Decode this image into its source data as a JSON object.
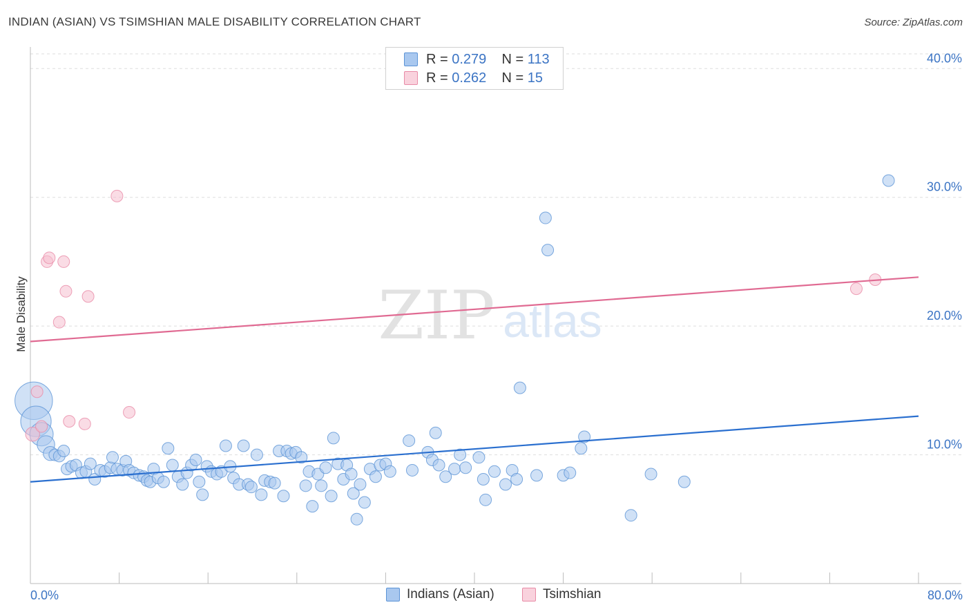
{
  "title": "INDIAN (ASIAN) VS TSIMSHIAN MALE DISABILITY CORRELATION CHART",
  "source": "Source: ZipAtlas.com",
  "watermark": {
    "zip": "ZIP",
    "atlas": "atlas"
  },
  "legend_top": {
    "row1": {
      "r_label": "R = ",
      "r_value": "0.279",
      "n_label": "N = ",
      "n_value": "113"
    },
    "row2": {
      "r_label": "R = ",
      "r_value": "0.262",
      "n_label": "N = ",
      "n_value": "15"
    }
  },
  "legend_bottom": {
    "series1": "Indians (Asian)",
    "series2": "Tsimshian"
  },
  "x_tick_left": "0.0%",
  "x_tick_right": "80.0%",
  "colors": {
    "blue_fill": "#a9c8ef",
    "blue_stroke": "#5b93d6",
    "blue_line": "#2a6fcf",
    "pink_fill": "#f5c0cf",
    "pink_stroke": "#e88aa6",
    "pink_line": "#e06a92",
    "tick_text": "#3b74c4",
    "grid": "#dedede"
  },
  "chart_data": {
    "type": "scatter",
    "title": "INDIAN (ASIAN) VS TSIMSHIAN MALE DISABILITY CORRELATION CHART",
    "xlabel": "",
    "ylabel": "Male Disability",
    "xlim": [
      0,
      80
    ],
    "ylim": [
      0,
      42
    ],
    "y_ticks": [
      {
        "value": 10,
        "label": "10.0%"
      },
      {
        "value": 20,
        "label": "20.0%"
      },
      {
        "value": 30,
        "label": "30.0%"
      },
      {
        "value": 40,
        "label": "40.0%"
      }
    ],
    "x_tick_labels": [
      "0.0%",
      "80.0%"
    ],
    "grid": true,
    "legend": "top-center",
    "series": [
      {
        "name": "Indians (Asian)",
        "color": "#a9c8ef",
        "stats": {
          "R": 0.279,
          "N": 113
        },
        "trend": {
          "x0": 0,
          "y0": 7.9,
          "x1": 80,
          "y1": 13.0
        },
        "points": [
          [
            0.3,
            14.2,
            3.2
          ],
          [
            0.5,
            12.6,
            2.6
          ],
          [
            1.0,
            11.6,
            2.0
          ],
          [
            1.4,
            10.8,
            1.5
          ],
          [
            1.8,
            10.1,
            1.2
          ],
          [
            2.2,
            10.0,
            1.0
          ],
          [
            2.6,
            9.9,
            1.0
          ],
          [
            3.0,
            10.3,
            1.0
          ],
          [
            3.3,
            8.9,
            1.0
          ],
          [
            3.7,
            9.1,
            1.0
          ],
          [
            4.1,
            9.2,
            1.0
          ],
          [
            4.6,
            8.6,
            1.0
          ],
          [
            5.0,
            8.7,
            1.0
          ],
          [
            5.4,
            9.3,
            1.0
          ],
          [
            5.8,
            8.1,
            1.0
          ],
          [
            6.3,
            8.8,
            1.0
          ],
          [
            6.7,
            8.7,
            1.0
          ],
          [
            7.2,
            9.0,
            1.0
          ],
          [
            7.4,
            9.8,
            1.0
          ],
          [
            7.8,
            8.9,
            1.0
          ],
          [
            8.3,
            8.8,
            1.0
          ],
          [
            8.6,
            9.5,
            1.0
          ],
          [
            8.9,
            8.8,
            1.0
          ],
          [
            9.3,
            8.6,
            1.0
          ],
          [
            9.8,
            8.4,
            1.0
          ],
          [
            10.2,
            8.3,
            1.0
          ],
          [
            10.5,
            8.0,
            1.0
          ],
          [
            10.8,
            7.9,
            1.0
          ],
          [
            11.1,
            8.9,
            1.0
          ],
          [
            11.5,
            8.2,
            1.0
          ],
          [
            12.0,
            7.9,
            1.0
          ],
          [
            12.4,
            10.5,
            1.0
          ],
          [
            12.8,
            9.2,
            1.0
          ],
          [
            13.3,
            8.3,
            1.0
          ],
          [
            13.7,
            7.7,
            1.0
          ],
          [
            14.1,
            8.6,
            1.0
          ],
          [
            14.5,
            9.2,
            1.0
          ],
          [
            14.9,
            9.6,
            1.0
          ],
          [
            15.2,
            7.9,
            1.0
          ],
          [
            15.5,
            6.9,
            1.0
          ],
          [
            15.9,
            9.1,
            1.0
          ],
          [
            16.3,
            8.7,
            1.0
          ],
          [
            16.8,
            8.5,
            1.0
          ],
          [
            17.2,
            8.7,
            1.0
          ],
          [
            17.6,
            10.7,
            1.0
          ],
          [
            18.0,
            9.1,
            1.0
          ],
          [
            18.3,
            8.2,
            1.0
          ],
          [
            18.8,
            7.7,
            1.0
          ],
          [
            19.2,
            10.7,
            1.0
          ],
          [
            19.6,
            7.7,
            1.0
          ],
          [
            19.9,
            7.5,
            1.0
          ],
          [
            20.4,
            10.0,
            1.0
          ],
          [
            20.8,
            6.9,
            1.0
          ],
          [
            21.1,
            8.0,
            1.0
          ],
          [
            21.6,
            7.9,
            1.0
          ],
          [
            22.0,
            7.8,
            1.0
          ],
          [
            22.4,
            10.3,
            1.0
          ],
          [
            22.8,
            6.8,
            1.0
          ],
          [
            23.1,
            10.3,
            1.0
          ],
          [
            23.5,
            10.1,
            1.0
          ],
          [
            23.9,
            10.2,
            1.0
          ],
          [
            24.4,
            9.8,
            1.0
          ],
          [
            24.8,
            7.6,
            1.0
          ],
          [
            25.1,
            8.7,
            1.0
          ],
          [
            25.4,
            6.0,
            1.0
          ],
          [
            25.9,
            8.5,
            1.0
          ],
          [
            26.2,
            7.6,
            1.0
          ],
          [
            26.6,
            9.0,
            1.0
          ],
          [
            27.1,
            6.8,
            1.0
          ],
          [
            27.3,
            11.3,
            1.0
          ],
          [
            27.7,
            9.3,
            1.0
          ],
          [
            28.2,
            8.1,
            1.0
          ],
          [
            28.5,
            9.2,
            1.0
          ],
          [
            28.9,
            8.5,
            1.0
          ],
          [
            29.1,
            7.0,
            1.0
          ],
          [
            29.4,
            5.0,
            1.0
          ],
          [
            29.7,
            7.7,
            1.0
          ],
          [
            30.1,
            6.3,
            1.0
          ],
          [
            30.6,
            8.9,
            1.0
          ],
          [
            31.1,
            8.3,
            1.0
          ],
          [
            31.5,
            9.2,
            1.0
          ],
          [
            32.0,
            9.3,
            1.0
          ],
          [
            32.4,
            8.7,
            1.0
          ],
          [
            34.1,
            11.1,
            1.0
          ],
          [
            34.4,
            8.8,
            1.0
          ],
          [
            35.8,
            10.2,
            1.0
          ],
          [
            36.2,
            9.6,
            1.0
          ],
          [
            36.5,
            11.7,
            1.0
          ],
          [
            36.8,
            9.2,
            1.0
          ],
          [
            37.4,
            8.3,
            1.0
          ],
          [
            38.2,
            8.9,
            1.0
          ],
          [
            38.7,
            10.0,
            1.0
          ],
          [
            39.2,
            9.0,
            1.0
          ],
          [
            40.4,
            9.8,
            1.0
          ],
          [
            40.8,
            8.1,
            1.0
          ],
          [
            41.0,
            6.5,
            1.0
          ],
          [
            41.8,
            8.7,
            1.0
          ],
          [
            42.8,
            7.7,
            1.0
          ],
          [
            43.4,
            8.8,
            1.0
          ],
          [
            43.8,
            8.1,
            1.0
          ],
          [
            44.1,
            15.2,
            1.0
          ],
          [
            45.6,
            8.4,
            1.0
          ],
          [
            46.4,
            28.4,
            1.0
          ],
          [
            46.6,
            25.9,
            1.0
          ],
          [
            48.0,
            8.4,
            1.0
          ],
          [
            48.6,
            8.6,
            1.0
          ],
          [
            49.6,
            10.5,
            1.0
          ],
          [
            49.9,
            11.4,
            1.0
          ],
          [
            54.1,
            5.3,
            1.0
          ],
          [
            55.9,
            8.5,
            1.0
          ],
          [
            58.9,
            7.9,
            1.0
          ],
          [
            77.3,
            31.3,
            1.0
          ]
        ]
      },
      {
        "name": "Tsimshian",
        "color": "#f5c0cf",
        "stats": {
          "R": 0.262,
          "N": 15
        },
        "trend": {
          "x0": 0,
          "y0": 18.8,
          "x1": 80,
          "y1": 23.8
        },
        "points": [
          [
            0.2,
            11.6,
            1.2
          ],
          [
            0.6,
            14.9,
            1.0
          ],
          [
            1.0,
            12.2,
            1.0
          ],
          [
            1.5,
            25.0,
            1.0
          ],
          [
            1.7,
            25.3,
            1.0
          ],
          [
            2.6,
            20.3,
            1.0
          ],
          [
            3.0,
            25.0,
            1.0
          ],
          [
            3.2,
            22.7,
            1.0
          ],
          [
            3.5,
            12.6,
            1.0
          ],
          [
            4.9,
            12.4,
            1.0
          ],
          [
            5.2,
            22.3,
            1.0
          ],
          [
            7.8,
            30.1,
            1.0
          ],
          [
            8.9,
            13.3,
            1.0
          ],
          [
            74.4,
            22.9,
            1.0
          ],
          [
            76.1,
            23.6,
            1.0
          ]
        ]
      }
    ]
  }
}
